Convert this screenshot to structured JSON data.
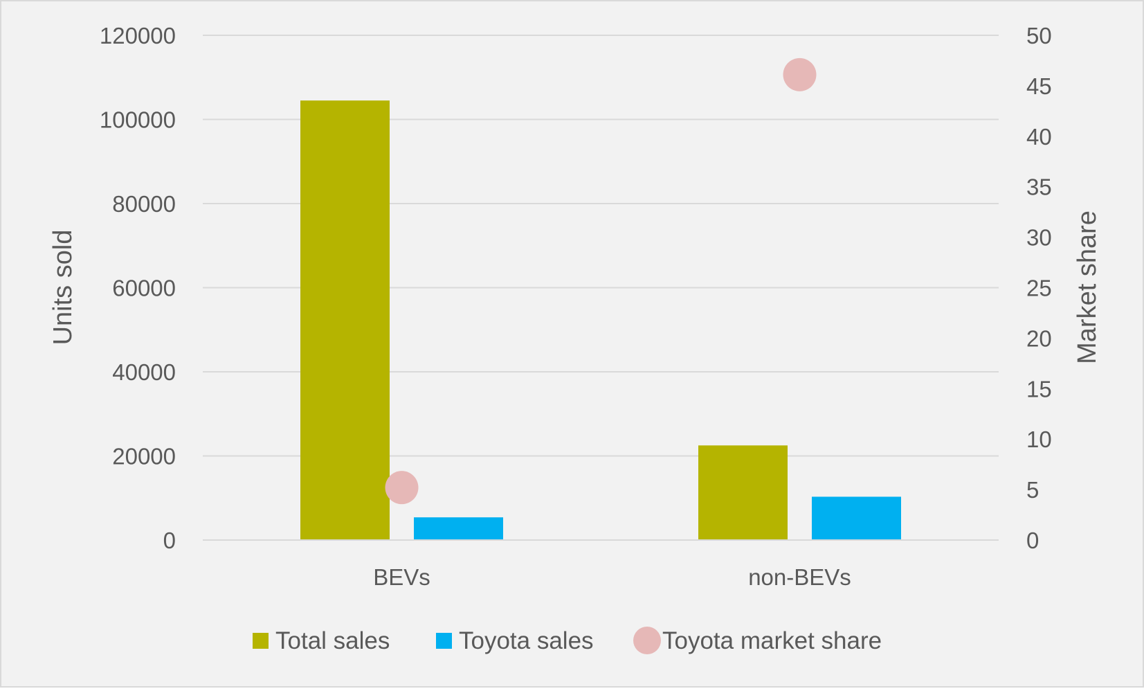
{
  "chart_data": {
    "type": "bar",
    "categories": [
      "BEVs",
      "non-BEVs"
    ],
    "series": [
      {
        "name": "Total sales",
        "kind": "bar",
        "axis": "left",
        "color": "#B5B400",
        "values": [
          104500,
          22500
        ]
      },
      {
        "name": "Toyota sales",
        "kind": "bar",
        "axis": "left",
        "color": "#00B0F0",
        "values": [
          5400,
          10300
        ]
      },
      {
        "name": "Toyota market share",
        "kind": "scatter",
        "axis": "right",
        "color": "#E6B8B7",
        "values": [
          5.2,
          46.1
        ]
      }
    ],
    "ylabel": "Units sold",
    "y2label": "Market share",
    "ylim": [
      0,
      120000
    ],
    "y2lim": [
      0,
      50
    ],
    "yticks": [
      "0",
      "20000",
      "40000",
      "60000",
      "80000",
      "100000",
      "120000"
    ],
    "y2ticks": [
      "0",
      "5",
      "10",
      "15",
      "20",
      "25",
      "30",
      "35",
      "40",
      "45",
      "50"
    ],
    "grid": true,
    "legend_position": "bottom",
    "background": "#F2F2F2",
    "border_color": "#D9D9D9",
    "grid_color": "#D9D9D9",
    "text_color": "#595959"
  }
}
